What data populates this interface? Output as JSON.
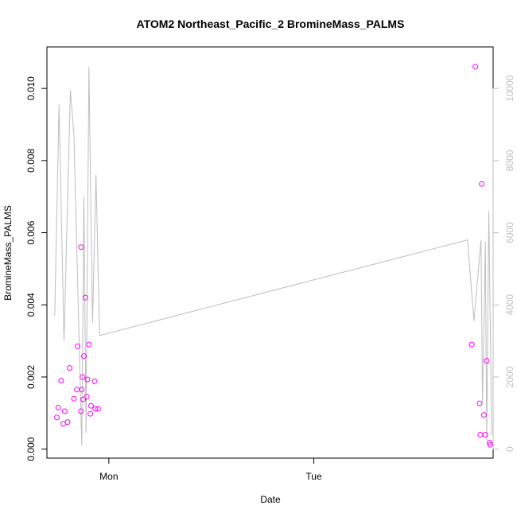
{
  "chart_data": {
    "type": "scatter",
    "title": "ATOM2 Northeast_Pacific_2 BromineMass_PALMS",
    "xlabel": "Date",
    "ylabel": "BromineMass_PALMS",
    "x_axis": {
      "type": "date",
      "ticks": [
        {
          "label": "Mon",
          "value": "2016-08-15T00:00"
        },
        {
          "label": "Tue",
          "value": "2016-08-16T00:00"
        }
      ],
      "range": [
        "2016-08-14T16:45",
        "2016-08-16T21:00"
      ]
    },
    "y_left": {
      "range": [
        -0.00025,
        0.01115
      ],
      "ticks": [
        "0.000",
        "0.002",
        "0.004",
        "0.006",
        "0.008",
        "0.010"
      ],
      "tick_values": [
        0,
        0.002,
        0.004,
        0.006,
        0.008,
        0.01
      ]
    },
    "y_right": {
      "range": [
        -250,
        11150
      ],
      "ticks": [
        "0",
        "2000",
        "4000",
        "6000",
        "8000",
        "10000"
      ],
      "tick_values": [
        0,
        2000,
        4000,
        6000,
        8000,
        10000
      ],
      "color": "#bebebe"
    },
    "grid": false,
    "legend": "none",
    "series": [
      {
        "type": "scatter",
        "axis": "left",
        "color": "#ff00ff",
        "marker": "open-circle",
        "points": [
          {
            "x": "2016-08-14T17:55",
            "y": 0.00088
          },
          {
            "x": "2016-08-14T18:05",
            "y": 0.00115
          },
          {
            "x": "2016-08-14T18:25",
            "y": 0.0019
          },
          {
            "x": "2016-08-14T18:40",
            "y": 0.0007
          },
          {
            "x": "2016-08-14T18:50",
            "y": 0.00105
          },
          {
            "x": "2016-08-14T19:10",
            "y": 0.00075
          },
          {
            "x": "2016-08-14T19:25",
            "y": 0.00225
          },
          {
            "x": "2016-08-14T19:55",
            "y": 0.0014
          },
          {
            "x": "2016-08-14T20:15",
            "y": 0.00165
          },
          {
            "x": "2016-08-14T20:20",
            "y": 0.00285
          },
          {
            "x": "2016-08-14T20:45",
            "y": 0.0056
          },
          {
            "x": "2016-08-14T20:45",
            "y": 0.00105
          },
          {
            "x": "2016-08-14T20:50",
            "y": 0.00165
          },
          {
            "x": "2016-08-14T20:55",
            "y": 0.002
          },
          {
            "x": "2016-08-14T21:00",
            "y": 0.00138
          },
          {
            "x": "2016-08-14T21:05",
            "y": 0.00258
          },
          {
            "x": "2016-08-14T21:15",
            "y": 0.0042
          },
          {
            "x": "2016-08-14T21:25",
            "y": 0.00145
          },
          {
            "x": "2016-08-14T21:30",
            "y": 0.00193
          },
          {
            "x": "2016-08-14T21:40",
            "y": 0.0029
          },
          {
            "x": "2016-08-14T21:50",
            "y": 0.00098
          },
          {
            "x": "2016-08-14T21:55",
            "y": 0.0012
          },
          {
            "x": "2016-08-14T22:20",
            "y": 0.00188
          },
          {
            "x": "2016-08-14T22:25",
            "y": 0.00112
          },
          {
            "x": "2016-08-14T22:45",
            "y": 0.00112
          },
          {
            "x": "2016-08-16T18:30",
            "y": 0.0029
          },
          {
            "x": "2016-08-16T18:55",
            "y": 0.0106
          },
          {
            "x": "2016-08-16T19:25",
            "y": 0.00127
          },
          {
            "x": "2016-08-16T19:30",
            "y": 0.0004
          },
          {
            "x": "2016-08-16T19:40",
            "y": 0.00735
          },
          {
            "x": "2016-08-16T19:55",
            "y": 0.00095
          },
          {
            "x": "2016-08-16T20:05",
            "y": 0.0004
          },
          {
            "x": "2016-08-16T20:15",
            "y": 0.00245
          },
          {
            "x": "2016-08-16T20:35",
            "y": 0.00018
          },
          {
            "x": "2016-08-16T20:40",
            "y": 0.00012
          }
        ]
      },
      {
        "type": "line",
        "axis": "right",
        "color": "#bebebe",
        "points": [
          {
            "x": "2016-08-14T17:40",
            "y": 3700
          },
          {
            "x": "2016-08-14T18:10",
            "y": 9550
          },
          {
            "x": "2016-08-14T18:45",
            "y": 3000
          },
          {
            "x": "2016-08-14T19:30",
            "y": 9950
          },
          {
            "x": "2016-08-14T19:55",
            "y": 8700
          },
          {
            "x": "2016-08-14T20:50",
            "y": 100
          },
          {
            "x": "2016-08-14T21:05",
            "y": 7000
          },
          {
            "x": "2016-08-14T21:20",
            "y": 450
          },
          {
            "x": "2016-08-14T21:40",
            "y": 10600
          },
          {
            "x": "2016-08-14T22:05",
            "y": 3500
          },
          {
            "x": "2016-08-14T22:30",
            "y": 7600
          },
          {
            "x": "2016-08-14T22:55",
            "y": 3150
          },
          {
            "x": "2016-08-16T18:00",
            "y": 5800
          },
          {
            "x": "2016-08-16T18:45",
            "y": 3550
          },
          {
            "x": "2016-08-16T19:35",
            "y": 5800
          },
          {
            "x": "2016-08-16T19:45",
            "y": 1300
          },
          {
            "x": "2016-08-16T20:05",
            "y": 5750
          },
          {
            "x": "2016-08-16T20:15",
            "y": 250
          },
          {
            "x": "2016-08-16T20:30",
            "y": 6600
          },
          {
            "x": "2016-08-16T20:50",
            "y": 400
          }
        ]
      }
    ]
  }
}
